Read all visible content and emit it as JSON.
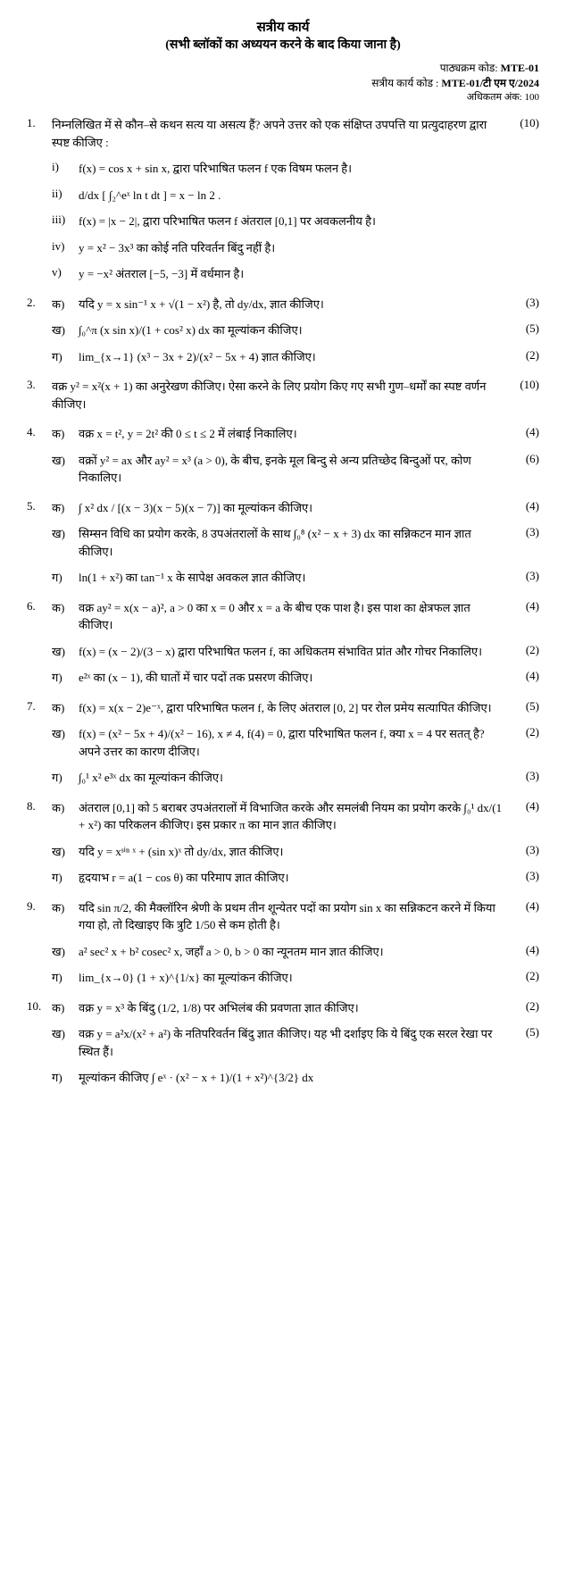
{
  "header": {
    "title": "सत्रीय कार्य",
    "subtitle": "(सभी ब्लॉकों का अध्ययन करने के बाद किया जाना है)",
    "course_code_label": "पाठ्यक्रम कोड:",
    "course_code": "MTE-01",
    "assign_code_label": "सत्रीय कार्य कोड :",
    "assign_code": "MTE-01/टी एम ए/2024",
    "max_marks_label": "अधिकतम अंक:",
    "max_marks": "100"
  },
  "q1": {
    "num": "1.",
    "text": "निम्नलिखित में से कौन–से कथन सत्य या असत्य हैं? अपने उत्तर को एक संक्षिप्त उपपत्ति या प्रत्युदाहरण द्वारा स्पष्ट कीजिए :",
    "marks": "(10)",
    "i": {
      "label": "i)",
      "text": "f(x) = cos x + sin x, द्वारा परिभाषित फलन f एक विषम फलन है।"
    },
    "ii": {
      "label": "ii)",
      "text": "d/dx [ ∫₂^eˣ ln t dt ] = x − ln 2 ."
    },
    "iii": {
      "label": "iii)",
      "text": "f(x) = |x − 2|, द्वारा परिभाषित फलन f अंतराल [0,1] पर अवकलनीय है।"
    },
    "iv": {
      "label": "iv)",
      "text": "y = x² − 3x³ का कोई नति परिवर्तन बिंदु नहीं है।"
    },
    "v": {
      "label": "v)",
      "text": "y = −x² अंतराल [−5, −3] में वर्धमान है।"
    }
  },
  "q2": {
    "num": "2.",
    "a": {
      "label": "क)",
      "text": "यदि y = x sin⁻¹ x + √(1 − x²) है, तो dy/dx, ज्ञात कीजिए।",
      "marks": "(3)"
    },
    "b": {
      "label": "ख)",
      "text": "∫₀^π  (x sin x)/(1 + cos² x) dx  का मूल्यांकन कीजिए।",
      "marks": "(5)"
    },
    "c": {
      "label": "ग)",
      "text": "lim_{x→1} (x³ − 3x + 2)/(x² − 5x + 4)  ज्ञात कीजिए।",
      "marks": "(2)"
    }
  },
  "q3": {
    "num": "3.",
    "text": "वक्र y² = x²(x + 1) का अनुरेखण कीजिए। ऐसा करने के लिए प्रयोग किए गए सभी गुण–धर्मों का स्पष्ट वर्णन कीजिए।",
    "marks": "(10)"
  },
  "q4": {
    "num": "4.",
    "a": {
      "label": "क)",
      "text": "वक्र x = t², y = 2t² की 0 ≤ t ≤ 2 में लंबाई निकालिए।",
      "marks": "(4)"
    },
    "b": {
      "label": "ख)",
      "text": "वक्रों y² = ax और ay² = x³ (a > 0), के बीच, इनके मूल बिन्दु से अन्य प्रतिच्छेद बिन्दुओं पर, कोण निकालिए।",
      "marks": "(6)"
    }
  },
  "q5": {
    "num": "5.",
    "a": {
      "label": "क)",
      "text": "∫  x² dx / [(x − 3)(x − 5)(x − 7)]  का मूल्यांकन कीजिए।",
      "marks": "(4)"
    },
    "b": {
      "label": "ख)",
      "text": "सिम्सन विधि का प्रयोग करके, 8 उपअंतरालों के साथ ∫₀⁸ (x² − x + 3) dx का सन्निकटन मान ज्ञात कीजिए।",
      "marks": "(3)"
    },
    "c": {
      "label": "ग)",
      "text": "ln(1 + x²) का tan⁻¹ x के सापेक्ष अवकल ज्ञात कीजिए।",
      "marks": "(3)"
    }
  },
  "q6": {
    "num": "6.",
    "a": {
      "label": "क)",
      "text": "वक्र ay² = x(x − a)², a > 0 का x = 0 और x = a के बीच एक पाश है। इस पाश का क्षेत्रफल ज्ञात कीजिए।",
      "marks": "(4)"
    },
    "b": {
      "label": "ख)",
      "text": "f(x) = (x − 2)/(3 − x) द्वारा परिभाषित फलन f, का अधिकतम संभावित प्रांत और गोचर निकालिए।",
      "marks": "(2)"
    },
    "c": {
      "label": "ग)",
      "text": "e²ˣ का (x − 1), की घातों में चार पदों तक प्रसरण कीजिए।",
      "marks": "(4)"
    }
  },
  "q7": {
    "num": "7.",
    "a": {
      "label": "क)",
      "text": "f(x) = x(x − 2)e⁻ˣ, द्वारा परिभाषित फलन f, के लिए अंतराल [0, 2] पर रोल प्रमेय सत्यापित कीजिए।",
      "marks": "(5)"
    },
    "b": {
      "label": "ख)",
      "text": "f(x) = (x² − 5x + 4)/(x² − 16), x ≠ 4, f(4) = 0, द्वारा परिभाषित फलन f, क्या x = 4 पर सतत् है? अपने उत्तर का कारण दीजिए।",
      "marks": "(2)"
    },
    "c": {
      "label": "ग)",
      "text": "∫₀¹ x² e³ˣ dx का मूल्यांकन कीजिए।",
      "marks": "(3)"
    }
  },
  "q8": {
    "num": "8.",
    "a": {
      "label": "क)",
      "text": "अंतराल [0,1] को 5 बराबर उपअंतरालों में विभाजित करके और समलंबी नियम का प्रयोग करके ∫₀¹ dx/(1 + x²) का परिकलन कीजिए। इस प्रकार π का मान ज्ञात कीजिए।",
      "marks": "(4)"
    },
    "b": {
      "label": "ख)",
      "text": "यदि y = xˢⁱⁿ ˣ + (sin x)ˣ तो dy/dx, ज्ञात कीजिए।",
      "marks": "(3)"
    },
    "c": {
      "label": "ग)",
      "text": "हृदयाभ r = a(1 − cos θ) का परिमाप ज्ञात कीजिए।",
      "marks": "(3)"
    }
  },
  "q9": {
    "num": "9.",
    "a": {
      "label": "क)",
      "text": "यदि sin π/2, की मैक्लॉरिन श्रेणी के प्रथम तीन शून्येतर पदों का प्रयोग sin x का सन्निकटन करने में किया गया हो, तो दिखाइए कि त्रुटि 1/50 से कम होती है।",
      "marks": "(4)"
    },
    "b": {
      "label": "ख)",
      "text": "a² sec² x + b² cosec² x, जहाँ a > 0, b > 0 का न्यूनतम मान ज्ञात कीजिए।",
      "marks": "(4)"
    },
    "c": {
      "label": "ग)",
      "text": "lim_{x→0} (1 + x)^{1/x} का मूल्यांकन कीजिए।",
      "marks": "(2)"
    }
  },
  "q10": {
    "num": "10.",
    "a": {
      "label": "क)",
      "text": "वक्र y = x³ के बिंदु (1/2, 1/8) पर अभिलंब की प्रवणता ज्ञात कीजिए।",
      "marks": "(2)"
    },
    "b": {
      "label": "ख)",
      "text": "वक्र y = a²x/(x² + a²) के नतिपरिवर्तन बिंदु ज्ञात कीजिए। यह भी दर्शाइए कि ये बिंदु एक सरल रेखा पर स्थित हैं।",
      "marks": "(5)"
    },
    "c": {
      "label": "ग)",
      "text": "मूल्यांकन कीजिए ∫ eˣ · (x² − x + 1)/(1 + x²)^{3/2} dx",
      "marks": ""
    }
  }
}
